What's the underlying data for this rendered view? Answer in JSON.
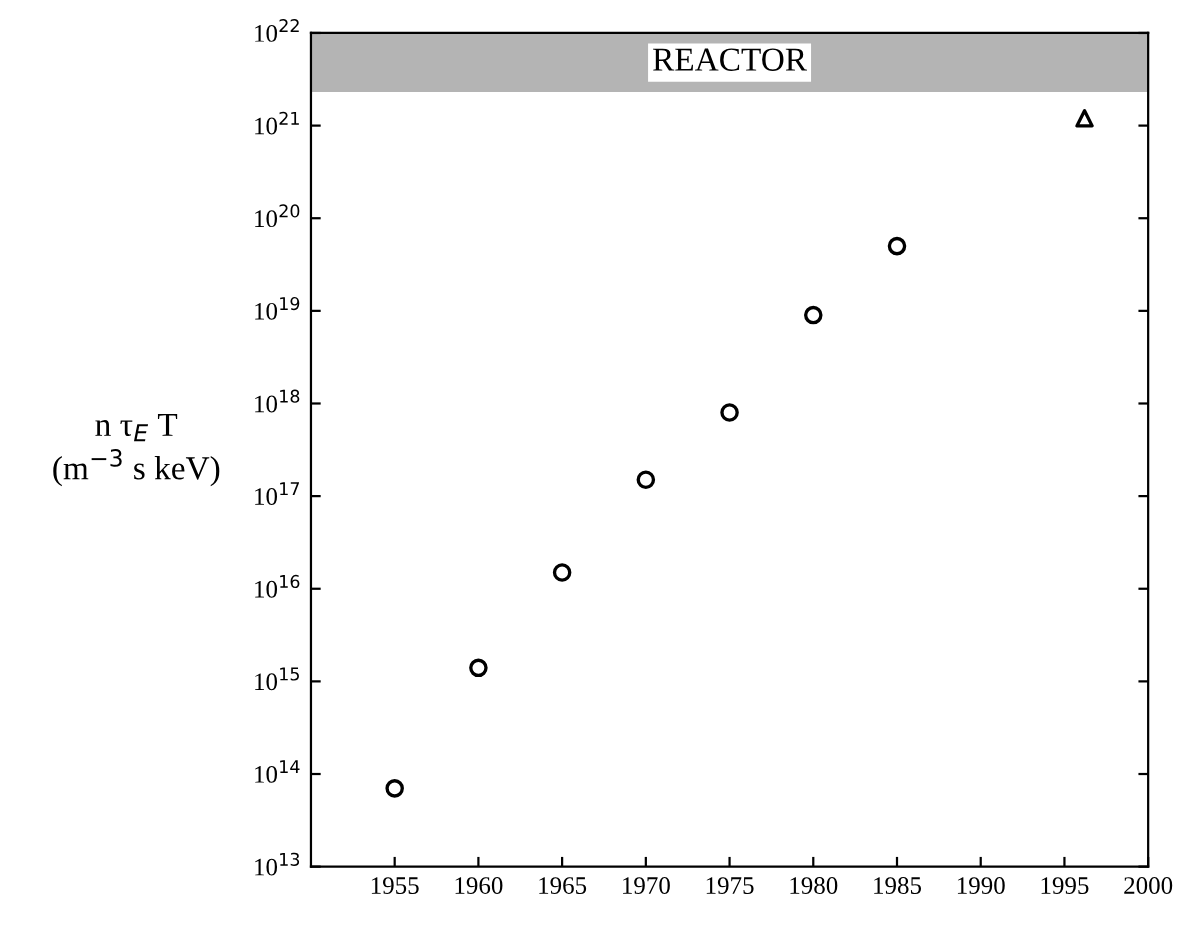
{
  "chart_data": {
    "type": "scatter",
    "ylabel": "n τ$_{E}$ T\n(m$^{−3}$ s keV)",
    "log": "y",
    "xlim": [
      1950,
      2000
    ],
    "xticks": [
      1955,
      1960,
      1965,
      1970,
      1975,
      1980,
      1985,
      1990,
      1995,
      2000
    ],
    "ylim": [
      10000000000000.0,
      1e+22
    ],
    "yticks": [
      {
        "value": 10000000000000.0,
        "label": "10$^{13}$"
      },
      {
        "value": 100000000000000.0,
        "label": "10$^{14}$"
      },
      {
        "value": 1000000000000000.0,
        "label": "10$^{15}$"
      },
      {
        "value": 1e+16,
        "label": "10$^{16}$"
      },
      {
        "value": 1e+17,
        "label": "10$^{17}$"
      },
      {
        "value": 1e+18,
        "label": "10$^{18}$"
      },
      {
        "value": 1e+19,
        "label": "10$^{19}$"
      },
      {
        "value": 1e+20,
        "label": "10$^{20}$"
      },
      {
        "value": 1e+21,
        "label": "10$^{21}$"
      },
      {
        "value": 1e+22,
        "label": "10$^{22}$"
      }
    ],
    "bands": [
      {
        "axis": "y",
        "from": 2.3e+21,
        "to": 1e+22,
        "label": "REACTOR",
        "color": "#b4b4b4"
      }
    ],
    "grid": false,
    "series": [
      {
        "color": "#000000",
        "marker": "circle",
        "x": [
          1955,
          1960,
          1965,
          1970,
          1975,
          1980,
          1985
        ],
        "values": [
          70000000000000.0,
          1400000000000000.0,
          1.5e+16,
          1.5e+17,
          8e+17,
          9e+18,
          5e+19
        ]
      },
      {
        "color": "#000000",
        "marker": "triangle",
        "x": [
          1996.2
        ],
        "values": [
          1.2e+21
        ]
      }
    ]
  }
}
